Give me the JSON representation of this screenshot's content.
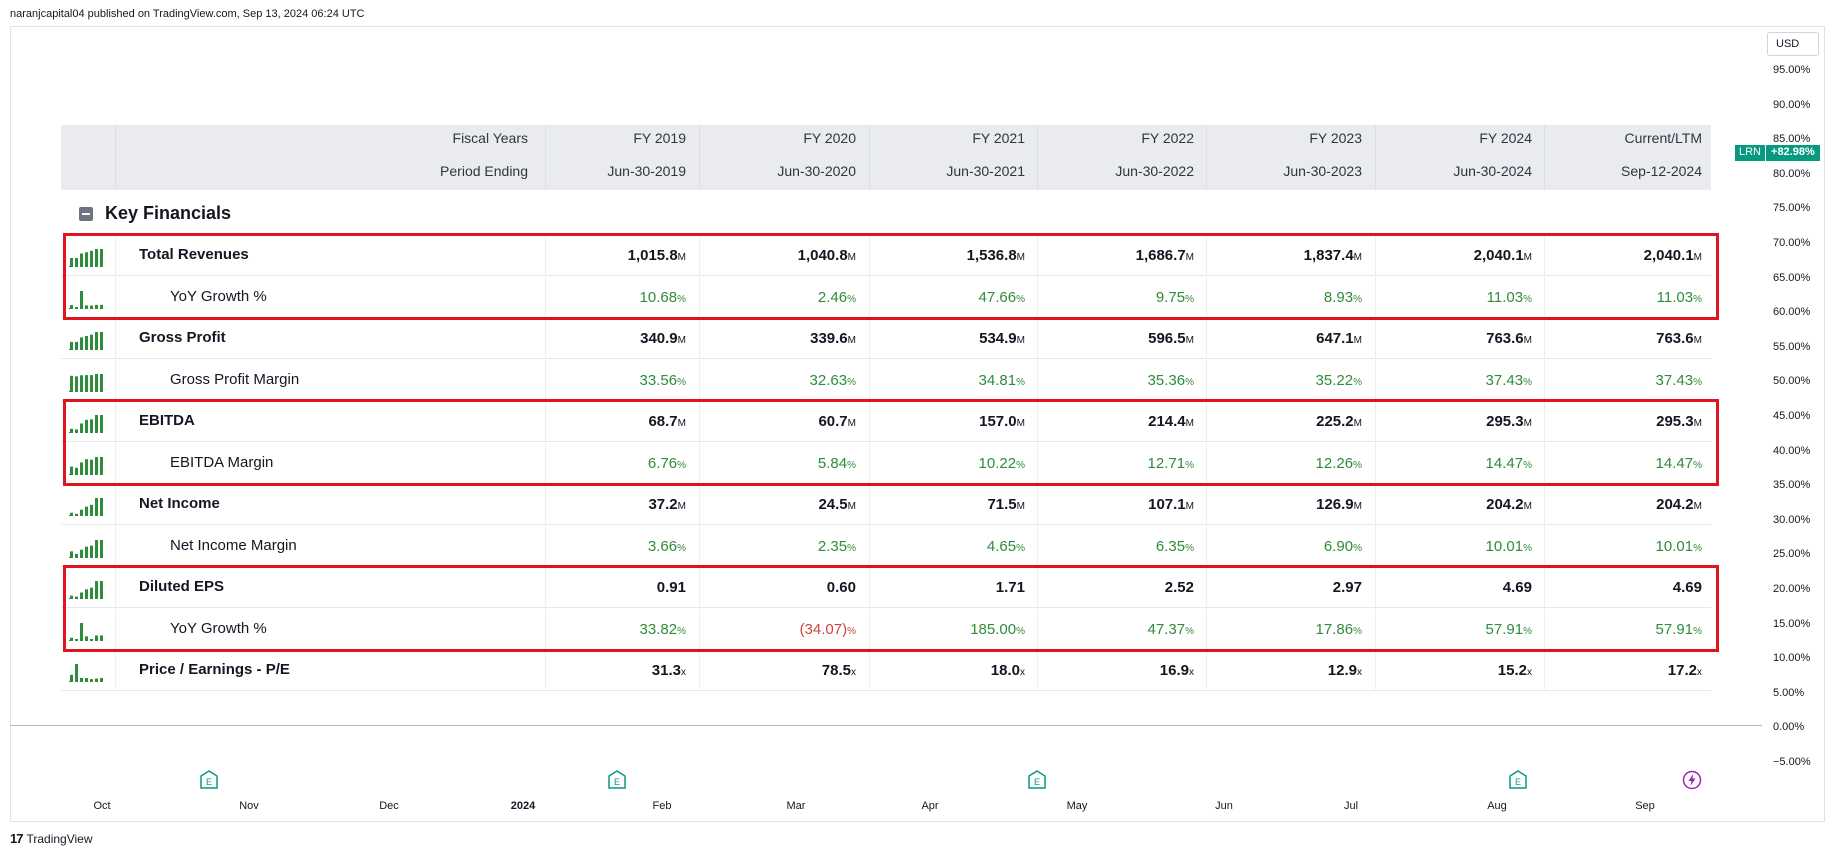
{
  "publisher_line": "naranjcapital04 published on TradingView.com, Sep 13, 2024 06:24 UTC",
  "footer": {
    "brand": "TradingView",
    "mark": "17"
  },
  "price_axis": {
    "currency": "USD",
    "ticks": [
      "95.00%",
      "90.00%",
      "85.00%",
      "80.00%",
      "75.00%",
      "70.00%",
      "65.00%",
      "60.00%",
      "55.00%",
      "50.00%",
      "45.00%",
      "40.00%",
      "35.00%",
      "30.00%",
      "25.00%",
      "20.00%",
      "15.00%",
      "10.00%",
      "5.00%",
      "0.00%",
      "−5.00%"
    ],
    "symbol_tag": "LRN",
    "symbol_change": "+82.98%"
  },
  "time_axis": {
    "months": [
      {
        "label": "Oct",
        "bold": false
      },
      {
        "label": "Nov",
        "bold": false
      },
      {
        "label": "Dec",
        "bold": false
      },
      {
        "label": "2024",
        "bold": true
      },
      {
        "label": "Feb",
        "bold": false
      },
      {
        "label": "Mar",
        "bold": false
      },
      {
        "label": "Apr",
        "bold": false
      },
      {
        "label": "May",
        "bold": false
      },
      {
        "label": "Jun",
        "bold": false
      },
      {
        "label": "Jul",
        "bold": false
      },
      {
        "label": "Aug",
        "bold": false
      },
      {
        "label": "Sep",
        "bold": false
      }
    ],
    "events": [
      {
        "icon": "earnings-icon",
        "color": "#089981"
      },
      {
        "icon": "earnings-icon",
        "color": "#089981"
      },
      {
        "icon": "earnings-icon",
        "color": "#089981"
      },
      {
        "icon": "earnings-icon",
        "color": "#089981"
      },
      {
        "icon": "dividend-lightning-icon",
        "color": "#9c27b0"
      }
    ]
  },
  "table": {
    "header_row1_label": "Fiscal Years",
    "header_row2_label": "Period Ending",
    "columns": [
      {
        "year": "FY 2019",
        "date": "Jun-30-2019"
      },
      {
        "year": "FY 2020",
        "date": "Jun-30-2020"
      },
      {
        "year": "FY 2021",
        "date": "Jun-30-2021"
      },
      {
        "year": "FY 2022",
        "date": "Jun-30-2022"
      },
      {
        "year": "FY 2023",
        "date": "Jun-30-2023"
      },
      {
        "year": "FY 2024",
        "date": "Jun-30-2024"
      },
      {
        "year": "Current/LTM",
        "date": "Sep-12-2024"
      }
    ],
    "section_title": "Key Financials",
    "rows": [
      {
        "label": "Total Revenues",
        "type": "main",
        "unit": "M",
        "values": [
          "1,015.8",
          "1,040.8",
          "1,536.8",
          "1,686.7",
          "1,837.4",
          "2,040.1",
          "2,040.1"
        ],
        "spark": [
          0.5,
          0.5,
          0.75,
          0.82,
          0.9,
          1.0,
          1.0
        ]
      },
      {
        "label": "YoY Growth %",
        "type": "sub",
        "unit": "%",
        "values": [
          "10.68",
          "2.46",
          "47.66",
          "9.75",
          "8.93",
          "11.03",
          "11.03"
        ],
        "spark": [
          0.22,
          0.05,
          1.0,
          0.2,
          0.19,
          0.23,
          0.23
        ]
      },
      {
        "label": "Gross Profit",
        "type": "main",
        "unit": "M",
        "values": [
          "340.9",
          "339.6",
          "534.9",
          "596.5",
          "647.1",
          "763.6",
          "763.6"
        ],
        "spark": [
          0.45,
          0.45,
          0.7,
          0.78,
          0.85,
          1.0,
          1.0
        ]
      },
      {
        "label": "Gross Profit Margin",
        "type": "sub",
        "unit": "%",
        "values": [
          "33.56",
          "32.63",
          "34.81",
          "35.36",
          "35.22",
          "37.43",
          "37.43"
        ],
        "spark": [
          0.9,
          0.87,
          0.93,
          0.94,
          0.94,
          1.0,
          1.0
        ]
      },
      {
        "label": "EBITDA",
        "type": "main",
        "unit": "M",
        "values": [
          "68.7",
          "60.7",
          "157.0",
          "214.4",
          "225.2",
          "295.3",
          "295.3"
        ],
        "spark": [
          0.23,
          0.2,
          0.53,
          0.73,
          0.76,
          1.0,
          1.0
        ]
      },
      {
        "label": "EBITDA Margin",
        "type": "sub",
        "unit": "%",
        "values": [
          "6.76",
          "5.84",
          "10.22",
          "12.71",
          "12.26",
          "14.47",
          "14.47"
        ],
        "spark": [
          0.47,
          0.4,
          0.7,
          0.88,
          0.85,
          1.0,
          1.0
        ]
      },
      {
        "label": "Net Income",
        "type": "main",
        "unit": "M",
        "values": [
          "37.2",
          "24.5",
          "71.5",
          "107.1",
          "126.9",
          "204.2",
          "204.2"
        ],
        "spark": [
          0.18,
          0.12,
          0.35,
          0.52,
          0.62,
          1.0,
          1.0
        ]
      },
      {
        "label": "Net Income Margin",
        "type": "sub",
        "unit": "%",
        "values": [
          "3.66",
          "2.35",
          "4.65",
          "6.35",
          "6.90",
          "10.01",
          "10.01"
        ],
        "spark": [
          0.37,
          0.23,
          0.46,
          0.63,
          0.69,
          1.0,
          1.0
        ]
      },
      {
        "label": "Diluted EPS",
        "type": "main",
        "unit": "",
        "values": [
          "0.91",
          "0.60",
          "1.71",
          "2.52",
          "2.97",
          "4.69",
          "4.69"
        ],
        "spark": [
          0.19,
          0.13,
          0.36,
          0.54,
          0.63,
          1.0,
          1.0
        ]
      },
      {
        "label": "YoY Growth %",
        "type": "sub",
        "unit": "%",
        "values": [
          "33.82",
          "(34.07)",
          "185.00",
          "47.37",
          "17.86",
          "57.91",
          "57.91"
        ],
        "negative": [
          false,
          true,
          false,
          false,
          false,
          false,
          false
        ],
        "spark": [
          0.18,
          0.1,
          1.0,
          0.26,
          0.1,
          0.31,
          0.31
        ]
      },
      {
        "label": "Price / Earnings - P/E",
        "type": "main",
        "unit": "x",
        "values": [
          "31.3",
          "78.5",
          "18.0",
          "16.9",
          "12.9",
          "15.2",
          "17.2"
        ],
        "spark": [
          0.4,
          1.0,
          0.23,
          0.22,
          0.16,
          0.19,
          0.22
        ]
      }
    ],
    "highlights": [
      {
        "rows": [
          0,
          1
        ]
      },
      {
        "rows": [
          4,
          5
        ]
      },
      {
        "rows": [
          8,
          9
        ]
      }
    ]
  },
  "colors": {
    "green_value": "#2f8c3a",
    "red_value": "#d0433b",
    "spark": "#2f8c3a",
    "highlight": "#e0141e",
    "tv_teal": "#089981"
  }
}
